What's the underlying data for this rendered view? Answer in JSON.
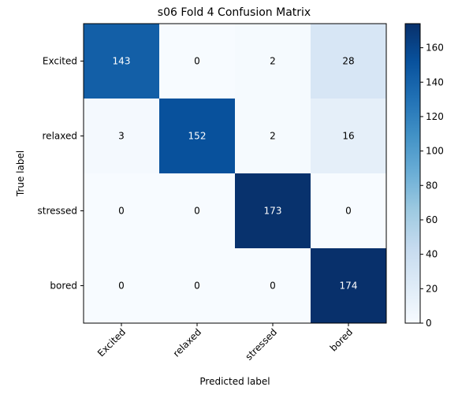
{
  "chart_data": {
    "type": "heatmap",
    "title": "s06 Fold 4 Confusion Matrix",
    "xlabel": "Predicted label",
    "ylabel": "True label",
    "x_categories": [
      "Excited",
      "relaxed",
      "stressed",
      "bored"
    ],
    "y_categories": [
      "Excited",
      "relaxed",
      "stressed",
      "bored"
    ],
    "values": [
      [
        143,
        0,
        2,
        28
      ],
      [
        3,
        152,
        2,
        16
      ],
      [
        0,
        0,
        173,
        0
      ],
      [
        0,
        0,
        0,
        174
      ]
    ],
    "vmin": 0,
    "vmax": 174,
    "colormap": "Blues",
    "colorbar": {
      "ticks": [
        0,
        20,
        40,
        60,
        80,
        100,
        120,
        140,
        160
      ],
      "tick_labels": [
        "0",
        "20",
        "40",
        "60",
        "80",
        "100",
        "120",
        "140",
        "160"
      ]
    },
    "text_colors": {
      "light": "#ffffff",
      "dark": "#000000"
    },
    "grid": false
  }
}
